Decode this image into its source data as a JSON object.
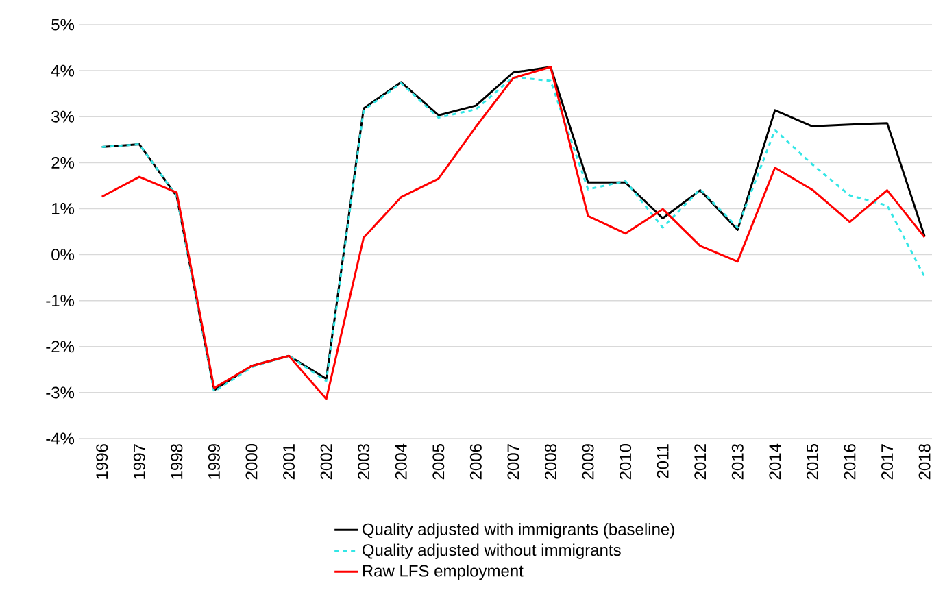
{
  "chart_data": {
    "type": "line",
    "categories": [
      "1996",
      "1997",
      "1998",
      "1999",
      "2000",
      "2001",
      "2002",
      "2003",
      "2004",
      "2005",
      "2006",
      "2007",
      "2008",
      "2009",
      "2010",
      "2011",
      "2012",
      "2013",
      "2014",
      "2015",
      "2016",
      "2017",
      "2018"
    ],
    "series": [
      {
        "name": "Quality adjusted with immigrants (baseline)",
        "color": "#000000",
        "line_style": "solid",
        "values": [
          2.34,
          2.4,
          1.27,
          -2.95,
          -2.42,
          -2.2,
          -2.7,
          3.18,
          3.75,
          3.03,
          3.24,
          3.96,
          4.08,
          1.57,
          1.57,
          0.79,
          1.4,
          0.54,
          3.14,
          2.79,
          2.83,
          2.86,
          0.4
        ]
      },
      {
        "name": "Quality adjusted without immigrants",
        "color": "#33e6e6",
        "line_style": "dashed",
        "values": [
          2.34,
          2.4,
          1.27,
          -2.98,
          -2.45,
          -2.2,
          -2.75,
          3.14,
          3.73,
          2.98,
          3.16,
          3.86,
          3.78,
          1.42,
          1.6,
          0.59,
          1.42,
          0.59,
          2.71,
          1.96,
          1.29,
          1.07,
          -0.48
        ]
      },
      {
        "name": "Raw LFS employment",
        "color": "#ff0000",
        "line_style": "solid",
        "values": [
          1.26,
          1.69,
          1.35,
          -2.9,
          -2.42,
          -2.2,
          -3.14,
          0.37,
          1.25,
          1.65,
          2.78,
          3.84,
          4.08,
          0.84,
          0.46,
          0.99,
          0.19,
          -0.15,
          1.89,
          1.41,
          0.71,
          1.4,
          0.38
        ]
      }
    ],
    "ylim": [
      -4,
      5
    ],
    "yticks": [
      {
        "value": -4,
        "label": "-4%"
      },
      {
        "value": -3,
        "label": "-3%"
      },
      {
        "value": -2,
        "label": "-2%"
      },
      {
        "value": -1,
        "label": "-1%"
      },
      {
        "value": 0,
        "label": "0%"
      },
      {
        "value": 1,
        "label": "1%"
      },
      {
        "value": 2,
        "label": "2%"
      },
      {
        "value": 3,
        "label": "3%"
      },
      {
        "value": 4,
        "label": "4%"
      },
      {
        "value": 5,
        "label": "5%"
      }
    ],
    "grid": "y",
    "legend": "bottom"
  }
}
